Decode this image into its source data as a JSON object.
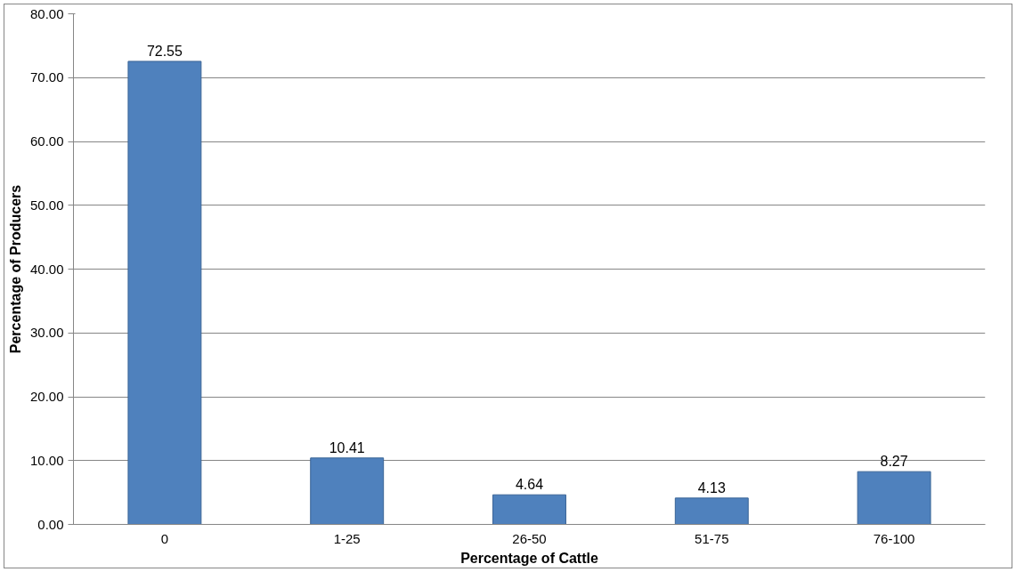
{
  "chart_data": {
    "type": "bar",
    "xlabel": "Percentage of Cattle",
    "ylabel": "Percentage of Producers",
    "categories": [
      "0",
      "1-25",
      "26-50",
      "51-75",
      "76-100"
    ],
    "values": [
      72.55,
      10.41,
      4.64,
      4.13,
      8.27
    ],
    "color": "#4f81bd",
    "ylim": [
      0,
      80
    ],
    "yticks": [
      {
        "value": 0,
        "label": "0.00"
      },
      {
        "value": 10,
        "label": "10.00"
      },
      {
        "value": 20,
        "label": "20.00"
      },
      {
        "value": 30,
        "label": "30.00"
      },
      {
        "value": 40,
        "label": "40.00"
      },
      {
        "value": 50,
        "label": "50.00"
      },
      {
        "value": 60,
        "label": "60.00"
      },
      {
        "value": 70,
        "label": "70.00"
      },
      {
        "value": 80,
        "label": "80.00"
      }
    ],
    "grid": "y",
    "data_labels": true
  }
}
